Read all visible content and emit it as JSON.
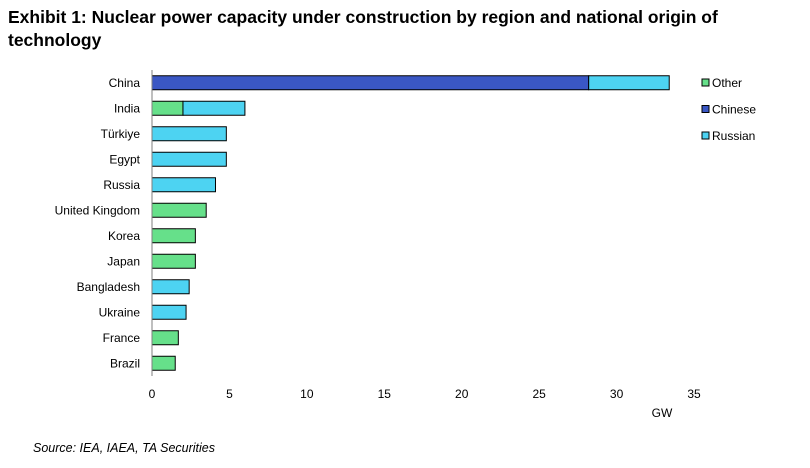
{
  "title": "Exhibit 1: Nuclear power capacity under construction by region and national origin of technology",
  "source": "Source: IEA, IAEA, TA Securities",
  "colors": {
    "Other": "#66e08a",
    "Chinese": "#3a57c4",
    "Russian": "#4dd3f2",
    "axis": "#7f7f7f",
    "stroke": "#000000"
  },
  "chart_data": {
    "type": "bar",
    "orientation": "horizontal",
    "stacked": true,
    "categories": [
      "China",
      "India",
      "Türkiye",
      "Egypt",
      "Russia",
      "United Kingdom",
      "Korea",
      "Japan",
      "Bangladesh",
      "Ukraine",
      "France",
      "Brazil"
    ],
    "series": [
      {
        "name": "Other",
        "values": [
          0,
          2.0,
          0,
          0,
          0,
          3.5,
          2.8,
          2.8,
          0,
          0,
          1.7,
          1.5
        ]
      },
      {
        "name": "Chinese",
        "values": [
          28.2,
          0,
          0,
          0,
          0,
          0,
          0,
          0,
          0,
          0,
          0,
          0
        ]
      },
      {
        "name": "Russian",
        "values": [
          5.2,
          4.0,
          4.8,
          4.8,
          4.1,
          0,
          0,
          0,
          2.4,
          2.2,
          0,
          0
        ]
      }
    ],
    "xlim": [
      0,
      35
    ],
    "xticks": [
      "0",
      "5",
      "10",
      "15",
      "20",
      "25",
      "30",
      "35"
    ],
    "xlabel": "GW",
    "ylabel": "",
    "legend": [
      "Other",
      "Chinese",
      "Russian"
    ],
    "legend_position": "right"
  }
}
